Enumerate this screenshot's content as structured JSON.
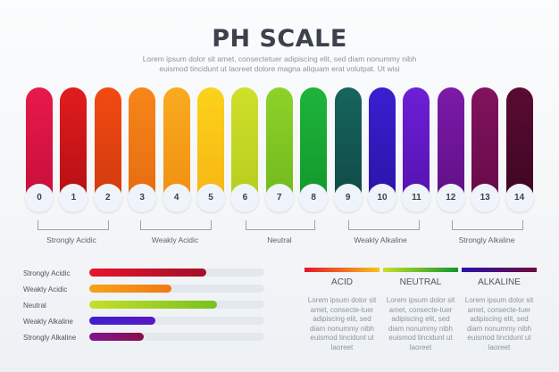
{
  "header": {
    "title": "PH SCALE",
    "subtitle": "Lorem ipsum dolor sit amet, consectetuer adipiscing elit, sed diam nonummy nibh euismod tincidunt ut laoreet dolore magna aliquam erat volutpat. Ut wisi"
  },
  "scale": [
    {
      "label": "0",
      "color_top": "#e8194c",
      "color_bottom": "#c50f3a"
    },
    {
      "label": "1",
      "color_top": "#e11d1d",
      "color_bottom": "#b30f14"
    },
    {
      "label": "2",
      "color_top": "#f24a12",
      "color_bottom": "#d03a0e"
    },
    {
      "label": "3",
      "color_top": "#f7861a",
      "color_bottom": "#e56b10"
    },
    {
      "label": "4",
      "color_top": "#f9ab1f",
      "color_bottom": "#f08e12"
    },
    {
      "label": "5",
      "color_top": "#fbd21a",
      "color_bottom": "#f6b515"
    },
    {
      "label": "6",
      "color_top": "#cfe02a",
      "color_bottom": "#b5cc1e"
    },
    {
      "label": "7",
      "color_top": "#8fd12a",
      "color_bottom": "#6fba1c"
    },
    {
      "label": "8",
      "color_top": "#1eb53a",
      "color_bottom": "#12972c"
    },
    {
      "label": "9",
      "color_top": "#17645e",
      "color_bottom": "#0f4a46"
    },
    {
      "label": "10",
      "color_top": "#3a1fd0",
      "color_bottom": "#2a13a8"
    },
    {
      "label": "11",
      "color_top": "#6d1fd6",
      "color_bottom": "#5412b0"
    },
    {
      "label": "12",
      "color_top": "#7b1aa8",
      "color_bottom": "#5f0f86"
    },
    {
      "label": "13",
      "color_top": "#82125e",
      "color_bottom": "#650b48"
    },
    {
      "label": "14",
      "color_top": "#5a0b33",
      "color_bottom": "#3d0622"
    }
  ],
  "groups": [
    "Strongly Acidic",
    "Weakly Acidic",
    "Neutral",
    "Weakly Alkaline",
    "Strongly Alkaline"
  ],
  "progress": [
    {
      "label": "Strongly Acidic",
      "value": 0.67,
      "color_start": "#e8142a",
      "color_end": "#a20f2a"
    },
    {
      "label": "Weakly Acidic",
      "value": 0.47,
      "color_start": "#f8a21a",
      "color_end": "#f07a14"
    },
    {
      "label": "Neutral",
      "value": 0.73,
      "color_start": "#c7df2a",
      "color_end": "#77c21e"
    },
    {
      "label": "Weakly Alkaline",
      "value": 0.38,
      "color_start": "#3e1fd2",
      "color_end": "#5a18c2"
    },
    {
      "label": "Strongly Alkaline",
      "value": 0.31,
      "color_start": "#7e1690",
      "color_end": "#8a0f4a"
    }
  ],
  "legend": [
    {
      "title": "ACID",
      "text": "Lorem ipsum dolor sit amet, consecte-tuer adipiscing elit, sed diam nonummy nibh euismod tincidunt ut laoreet",
      "color_start": "#e8142a",
      "color_end": "#f9c21a"
    },
    {
      "title": "NEUTRAL",
      "text": "Lorem ipsum dolor sit amet, consecte-tuer adipiscing elit, sed diam nonummy nibh euismod tincidunt ut laoreet",
      "color_start": "#c7df2a",
      "color_end": "#12972c"
    },
    {
      "title": "ALKALINE",
      "text": "Lorem ipsum dolor sit amet, consecte-tuer adipiscing elit, sed diam nonummy nibh euismod tincidunt ut laoreet",
      "color_start": "#2a13a8",
      "color_end": "#6d0b3a"
    }
  ]
}
